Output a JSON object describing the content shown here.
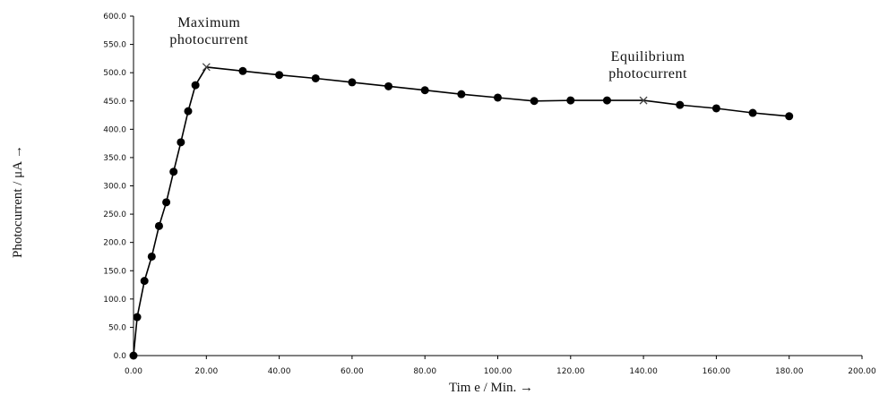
{
  "chart_data": {
    "type": "line",
    "title": "",
    "xlabel": "Tim e / Min. →",
    "ylabel": "Photocurrent / μA →",
    "xlim": [
      0,
      200
    ],
    "ylim": [
      0,
      600
    ],
    "x_ticks": [
      "0.00",
      "20.00",
      "40.00",
      "60.00",
      "80.00",
      "100.00",
      "120.00",
      "140.00",
      "160.00",
      "180.00",
      "200.00"
    ],
    "y_ticks": [
      "0.0",
      "50.0",
      "100.0",
      "150.0",
      "200.0",
      "250.0",
      "300.0",
      "350.0",
      "400.0",
      "450.0",
      "500.0",
      "550.0",
      "600.0"
    ],
    "grid": false,
    "legend": "none",
    "marker": "circle",
    "line_color": "#000000",
    "series": [
      {
        "points": [
          [
            0,
            0
          ],
          [
            1,
            68
          ],
          [
            3,
            132
          ],
          [
            5,
            175
          ],
          [
            7,
            229
          ],
          [
            9,
            271
          ],
          [
            11,
            325
          ],
          [
            13,
            377
          ],
          [
            15,
            432
          ],
          [
            17,
            478
          ],
          [
            20,
            510
          ],
          [
            30,
            503
          ],
          [
            40,
            496
          ],
          [
            50,
            490
          ],
          [
            60,
            483
          ],
          [
            70,
            476
          ],
          [
            80,
            469
          ],
          [
            90,
            462
          ],
          [
            100,
            456
          ],
          [
            110,
            450
          ],
          [
            120,
            451
          ],
          [
            130,
            451
          ],
          [
            140,
            451
          ],
          [
            150,
            443
          ],
          [
            160,
            437
          ],
          [
            170,
            429
          ],
          [
            180,
            423
          ]
        ],
        "cross_markers_at_x": [
          20,
          140
        ]
      }
    ],
    "annotations": [
      {
        "lines": [
          "Maximum",
          "photocurrent"
        ],
        "x": 20,
        "y": 510
      },
      {
        "lines": [
          "Equilibrium",
          "photocurrent"
        ],
        "x": 140,
        "y": 451
      }
    ]
  }
}
